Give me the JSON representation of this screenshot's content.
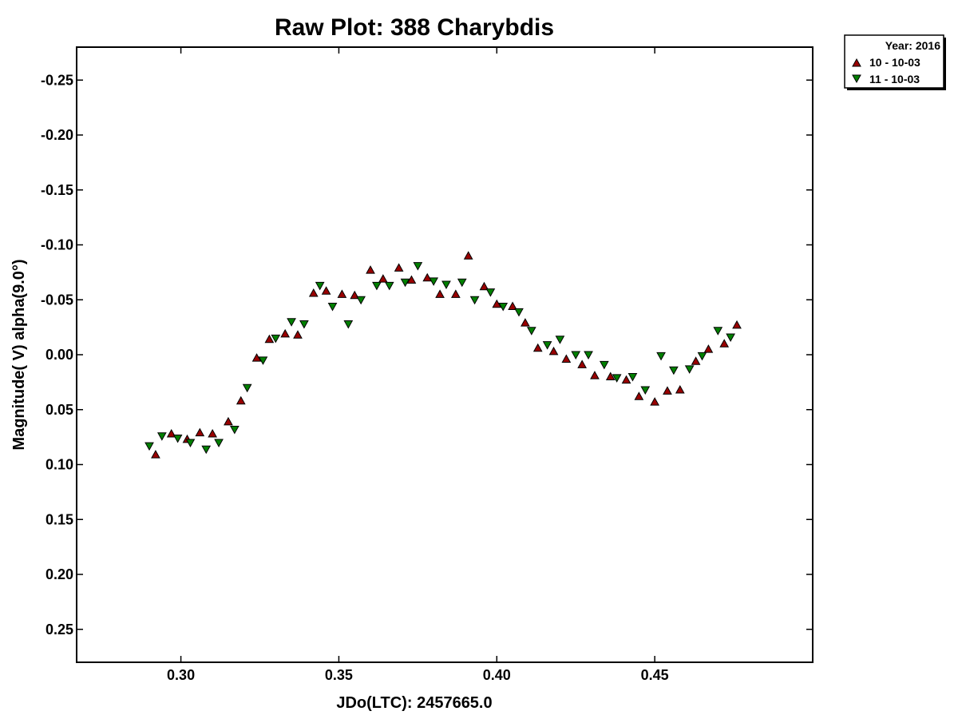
{
  "chart_data": {
    "type": "scatter",
    "title": "Raw Plot: 388 Charybdis",
    "xlabel": "JDo(LTC): 2457665.0",
    "ylabel": "Magnitude( V) alpha(9.0°)",
    "xlim": [
      0.267,
      0.5
    ],
    "ylim": [
      0.28,
      -0.28
    ],
    "y_inverted": true,
    "x_ticks": [
      0.3,
      0.35,
      0.4,
      0.45
    ],
    "x_tick_labels": [
      "0.30",
      "0.35",
      "0.40",
      "0.45"
    ],
    "y_ticks": [
      -0.25,
      -0.2,
      -0.15,
      -0.1,
      -0.05,
      0.0,
      0.05,
      0.1,
      0.15,
      0.2,
      0.25
    ],
    "y_tick_labels": [
      "-0.25",
      "-0.20",
      "-0.15",
      "-0.10",
      "-0.05",
      "0.00",
      "0.05",
      "0.10",
      "0.15",
      "0.20",
      "0.25"
    ],
    "grid": false,
    "legend": {
      "placement": "outside-top-right",
      "header": "Year: 2016",
      "entries": [
        "10 - 10-03",
        "11 - 10-03"
      ]
    },
    "series": [
      {
        "name": "10 - 10-03",
        "marker": "triangle-up",
        "color": "#990000",
        "points": [
          [
            0.292,
            0.091
          ],
          [
            0.297,
            0.072
          ],
          [
            0.302,
            0.077
          ],
          [
            0.306,
            0.071
          ],
          [
            0.31,
            0.072
          ],
          [
            0.315,
            0.061
          ],
          [
            0.319,
            0.042
          ],
          [
            0.324,
            0.003
          ],
          [
            0.328,
            -0.014
          ],
          [
            0.333,
            -0.019
          ],
          [
            0.337,
            -0.018
          ],
          [
            0.342,
            -0.056
          ],
          [
            0.346,
            -0.058
          ],
          [
            0.351,
            -0.055
          ],
          [
            0.355,
            -0.054
          ],
          [
            0.36,
            -0.077
          ],
          [
            0.364,
            -0.069
          ],
          [
            0.369,
            -0.079
          ],
          [
            0.373,
            -0.068
          ],
          [
            0.378,
            -0.07
          ],
          [
            0.382,
            -0.055
          ],
          [
            0.387,
            -0.055
          ],
          [
            0.391,
            -0.09
          ],
          [
            0.396,
            -0.062
          ],
          [
            0.4,
            -0.046
          ],
          [
            0.405,
            -0.044
          ],
          [
            0.409,
            -0.029
          ],
          [
            0.413,
            -0.006
          ],
          [
            0.418,
            -0.003
          ],
          [
            0.422,
            0.004
          ],
          [
            0.427,
            0.009
          ],
          [
            0.431,
            0.019
          ],
          [
            0.436,
            0.02
          ],
          [
            0.441,
            0.023
          ],
          [
            0.445,
            0.038
          ],
          [
            0.45,
            0.043
          ],
          [
            0.454,
            0.033
          ],
          [
            0.458,
            0.032
          ],
          [
            0.463,
            0.006
          ],
          [
            0.467,
            -0.005
          ],
          [
            0.472,
            -0.01
          ],
          [
            0.476,
            -0.027
          ]
        ]
      },
      {
        "name": "11 - 10-03",
        "marker": "triangle-down",
        "color": "#008000",
        "points": [
          [
            0.29,
            0.083
          ],
          [
            0.294,
            0.074
          ],
          [
            0.299,
            0.076
          ],
          [
            0.303,
            0.08
          ],
          [
            0.308,
            0.086
          ],
          [
            0.312,
            0.08
          ],
          [
            0.317,
            0.068
          ],
          [
            0.321,
            0.03
          ],
          [
            0.326,
            0.005
          ],
          [
            0.33,
            -0.015
          ],
          [
            0.335,
            -0.03
          ],
          [
            0.339,
            -0.028
          ],
          [
            0.344,
            -0.063
          ],
          [
            0.348,
            -0.044
          ],
          [
            0.353,
            -0.028
          ],
          [
            0.357,
            -0.05
          ],
          [
            0.362,
            -0.063
          ],
          [
            0.366,
            -0.063
          ],
          [
            0.371,
            -0.066
          ],
          [
            0.375,
            -0.081
          ],
          [
            0.38,
            -0.067
          ],
          [
            0.384,
            -0.064
          ],
          [
            0.389,
            -0.066
          ],
          [
            0.393,
            -0.05
          ],
          [
            0.398,
            -0.057
          ],
          [
            0.402,
            -0.044
          ],
          [
            0.407,
            -0.039
          ],
          [
            0.411,
            -0.022
          ],
          [
            0.416,
            -0.009
          ],
          [
            0.42,
            -0.014
          ],
          [
            0.425,
            0.0
          ],
          [
            0.429,
            0.0
          ],
          [
            0.434,
            0.009
          ],
          [
            0.438,
            0.021
          ],
          [
            0.443,
            0.02
          ],
          [
            0.447,
            0.032
          ],
          [
            0.452,
            0.001
          ],
          [
            0.456,
            0.014
          ],
          [
            0.461,
            0.013
          ],
          [
            0.465,
            0.001
          ],
          [
            0.47,
            -0.022
          ],
          [
            0.474,
            -0.016
          ]
        ]
      }
    ]
  }
}
